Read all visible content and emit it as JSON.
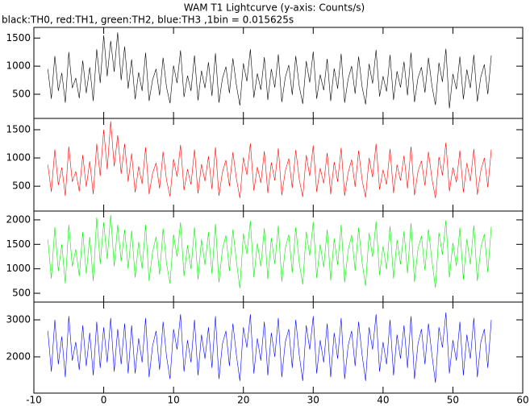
{
  "chart_data": {
    "type": "line",
    "title": "WAM T1 Lightcurve (y-axis: Counts/s)",
    "subtitle": "black:TH0, red:TH1, green:TH2, blue:TH3 ,1bin = 0.015625s",
    "xlim": [
      -10,
      60
    ],
    "xticks": [
      -10,
      0,
      10,
      20,
      30,
      40,
      50,
      60
    ],
    "x": [
      -8,
      -7.5,
      -7,
      -6.5,
      -6,
      -5.5,
      -5,
      -4.5,
      -4,
      -3.5,
      -3,
      -2.5,
      -2,
      -1.5,
      -1,
      -0.5,
      0,
      0.5,
      1,
      1.5,
      2,
      2.5,
      3,
      3.5,
      4,
      4.5,
      5,
      5.5,
      6,
      6.5,
      7,
      7.5,
      8,
      8.5,
      9,
      9.5,
      10,
      10.5,
      11,
      11.5,
      12,
      12.5,
      13,
      13.5,
      14,
      14.5,
      15,
      15.5,
      16,
      16.5,
      17,
      17.5,
      18,
      18.5,
      19,
      19.5,
      20,
      20.5,
      21,
      21.5,
      22,
      22.5,
      23,
      23.5,
      24,
      24.5,
      25,
      25.5,
      26,
      26.5,
      27,
      27.5,
      28,
      28.5,
      29,
      29.5,
      30,
      30.5,
      31,
      31.5,
      32,
      32.5,
      33,
      33.5,
      34,
      34.5,
      35,
      35.5,
      36,
      36.5,
      37,
      37.5,
      38,
      38.5,
      39,
      39.5,
      40,
      40.5,
      41,
      41.5,
      42,
      42.5,
      43,
      43.5,
      44,
      44.5,
      45,
      45.5,
      46,
      46.5,
      47,
      47.5,
      48,
      48.5,
      49,
      49.5,
      50,
      50.5,
      51,
      51.5,
      52,
      52.5,
      53,
      53.5,
      54,
      54.5,
      55,
      55.5
    ],
    "series": [
      {
        "color": "#000000",
        "ylim": [
          70,
          1690
        ],
        "yticks": [
          500,
          1000,
          1500
        ],
        "values": [
          950,
          420,
          1180,
          560,
          880,
          350,
          1250,
          610,
          790,
          430,
          1100,
          520,
          980,
          380,
          1300,
          700,
          1550,
          820,
          1450,
          900,
          1600,
          750,
          1350,
          600,
          1120,
          410,
          890,
          560,
          1240,
          380,
          760,
          950,
          480,
          1150,
          620,
          340,
          1010,
          700,
          1280,
          450,
          830,
          560,
          1190,
          390,
          920,
          610,
          1070,
          470,
          1230,
          350,
          780,
          990,
          520,
          1140,
          660,
          300,
          1050,
          730,
          1300,
          440,
          870,
          580,
          1160,
          400,
          950,
          620,
          1210,
          360,
          800,
          1020,
          490,
          1180,
          640,
          330,
          1090,
          710,
          1260,
          420,
          850,
          570,
          1130,
          380,
          960,
          600,
          1220,
          350,
          770,
          1000,
          510,
          1170,
          630,
          320,
          1040,
          690,
          1290,
          460,
          820,
          550,
          1200,
          400,
          910,
          620,
          1080,
          480,
          1240,
          360,
          790,
          980,
          530,
          1150,
          650,
          310,
          1060,
          720,
          1310,
          250,
          860,
          590,
          1170,
          410,
          940,
          610,
          1200,
          370,
          810,
          1030,
          500,
          1190
        ]
      },
      {
        "color": "#ff0000",
        "ylim": [
          60,
          1700
        ],
        "yticks": [
          500,
          1000,
          1500
        ],
        "values": [
          880,
          400,
          1150,
          520,
          830,
          330,
          1200,
          580,
          760,
          410,
          1050,
          490,
          940,
          360,
          1250,
          680,
          1500,
          800,
          1650,
          850,
          1400,
          720,
          1250,
          580,
          1080,
          390,
          850,
          540,
          1190,
          360,
          730,
          910,
          460,
          1110,
          600,
          320,
          980,
          670,
          1230,
          430,
          800,
          530,
          1150,
          370,
          890,
          590,
          1030,
          450,
          1190,
          330,
          750,
          960,
          500,
          1100,
          630,
          290,
          1010,
          700,
          1260,
          420,
          840,
          560,
          1120,
          380,
          920,
          600,
          1170,
          340,
          770,
          990,
          470,
          1140,
          620,
          310,
          1050,
          680,
          1220,
          400,
          820,
          550,
          1090,
          360,
          930,
          580,
          1180,
          330,
          740,
          970,
          490,
          1130,
          610,
          300,
          1000,
          660,
          1250,
          440,
          790,
          530,
          1160,
          380,
          880,
          600,
          1040,
          460,
          1200,
          340,
          760,
          950,
          510,
          1110,
          630,
          290,
          1020,
          690,
          1270,
          410,
          830,
          570,
          1130,
          390,
          910,
          590,
          1160,
          350,
          780,
          1000,
          480,
          1150
        ]
      },
      {
        "color": "#00ee00",
        "ylim": [
          320,
          2180
        ],
        "yticks": [
          500,
          1000,
          1500,
          2000
        ],
        "values": [
          1600,
          800,
          1850,
          950,
          1500,
          700,
          1900,
          1050,
          1400,
          850,
          1750,
          900,
          1650,
          750,
          2050,
          1100,
          1950,
          1200,
          2100,
          1050,
          1900,
          1150,
          1800,
          1000,
          1780,
          820,
          1550,
          1000,
          1900,
          750,
          1350,
          1650,
          880,
          1820,
          1100,
          700,
          1700,
          1250,
          1950,
          850,
          1480,
          1000,
          1850,
          780,
          1600,
          1080,
          1750,
          900,
          1920,
          720,
          1400,
          1680,
          950,
          1800,
          1150,
          600,
          1720,
          1300,
          1980,
          830,
          1520,
          1050,
          1830,
          790,
          1630,
          1100,
          1880,
          740,
          1420,
          1700,
          920,
          1850,
          1120,
          680,
          1760,
          1270,
          1960,
          810,
          1500,
          1030,
          1800,
          760,
          1620,
          1080,
          1900,
          720,
          1380,
          1690,
          960,
          1840,
          1130,
          650,
          1730,
          1240,
          1970,
          870,
          1460,
          990,
          1870,
          800,
          1590,
          1090,
          1770,
          910,
          1930,
          730,
          1410,
          1670,
          970,
          1810,
          1160,
          610,
          1740,
          1290,
          1990,
          820,
          1530,
          1060,
          1840,
          780,
          1610,
          1090,
          1890,
          750,
          1430,
          1710,
          930,
          1860
        ]
      },
      {
        "color": "#0000ff",
        "ylim": [
          1020,
          3480
        ],
        "yticks": [
          2000,
          3000
        ],
        "values": [
          2700,
          1600,
          3000,
          1800,
          2550,
          1450,
          3100,
          1900,
          2400,
          1650,
          2850,
          1750,
          2650,
          1500,
          2950,
          1700,
          2800,
          1850,
          3050,
          1600,
          2750,
          1800,
          2900,
          1550,
          2850,
          1550,
          2500,
          1850,
          3050,
          1450,
          2300,
          2700,
          1650,
          2950,
          2000,
          1400,
          2750,
          2200,
          3150,
          1600,
          2450,
          1850,
          3000,
          1500,
          2600,
          1950,
          2800,
          1700,
          3100,
          1400,
          2350,
          2700,
          1750,
          2900,
          2050,
          1350,
          2800,
          2250,
          3150,
          1550,
          2500,
          1900,
          2950,
          1500,
          2650,
          2000,
          3050,
          1450,
          2400,
          2750,
          1700,
          3000,
          2050,
          1350,
          2850,
          2200,
          3100,
          1550,
          2450,
          1850,
          2900,
          1450,
          2650,
          1950,
          3050,
          1400,
          2300,
          2700,
          1750,
          2950,
          2050,
          1350,
          2800,
          2200,
          3150,
          1600,
          2400,
          1800,
          3000,
          1500,
          2600,
          1950,
          2850,
          1700,
          3100,
          1400,
          2350,
          2750,
          1800,
          2900,
          2050,
          1300,
          2800,
          2250,
          3200,
          1550,
          2450,
          1900,
          2950,
          1500,
          2600,
          1950,
          3050,
          1450,
          2400,
          2750,
          1700,
          3000
        ]
      }
    ]
  }
}
